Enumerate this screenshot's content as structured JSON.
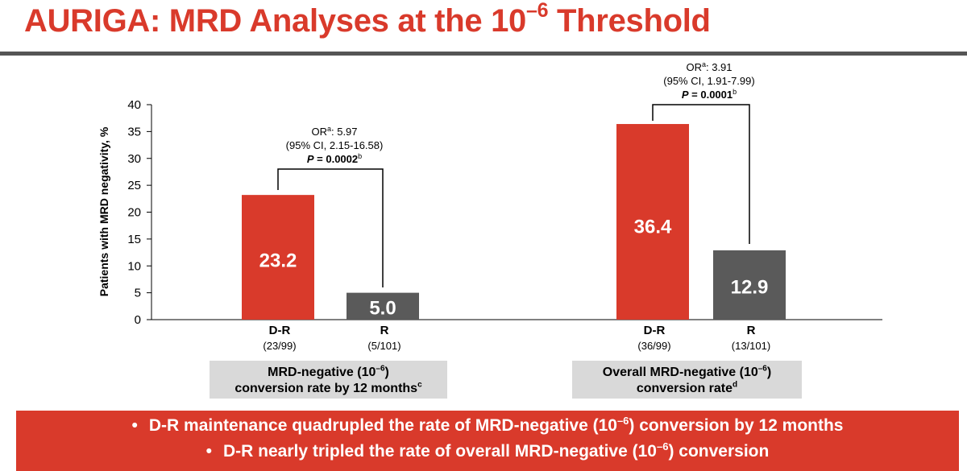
{
  "slide": {
    "title_main": "AURIGA: MRD Analyses at the 10",
    "title_sup": "–6",
    "title_end": " Threshold"
  },
  "chart_data": {
    "type": "bar",
    "ylabel": "Patients with MRD negativity, %",
    "ylim": [
      0,
      40
    ],
    "yticks": [
      0,
      5,
      10,
      15,
      20,
      25,
      30,
      35,
      40
    ],
    "colors": {
      "D-R": "#d93a2b",
      "R": "#5a5a5a"
    },
    "groups": [
      {
        "bars": [
          {
            "category": "D-R",
            "sublabel": "(23/99)",
            "value": 23.2,
            "label": "23.2"
          },
          {
            "category": "R",
            "sublabel": "(5/101)",
            "value": 5.0,
            "label": "5.0"
          }
        ],
        "annotation": {
          "or_prefix": "OR",
          "or_sup": "a",
          "or_value": ": 5.97",
          "ci": "(95% CI, 2.15-16.58)",
          "p_text": "P = 0.0002",
          "p_sup": "b"
        },
        "box": {
          "line1": "MRD-negative (10",
          "sup1": "–6",
          "line1_end": ")",
          "line2": "conversion rate by 12 months",
          "sup2": "c"
        }
      },
      {
        "bars": [
          {
            "category": "D-R",
            "sublabel": "(36/99)",
            "value": 36.4,
            "label": "36.4"
          },
          {
            "category": "R",
            "sublabel": "(13/101)",
            "value": 12.9,
            "label": "12.9"
          }
        ],
        "annotation": {
          "or_prefix": "OR",
          "or_sup": "a",
          "or_value": ": 3.91",
          "ci": "(95% CI, 1.91-7.99)",
          "p_text": "P = 0.0001",
          "p_sup": "b"
        },
        "box": {
          "line1": "Overall MRD-negative (10",
          "sup1": "–6",
          "line1_end": ")",
          "line2": "conversion rate",
          "sup2": "d"
        }
      }
    ]
  },
  "banner": {
    "bullet": "•",
    "line1_a": "D-R maintenance quadrupled the rate of MRD-negative (10",
    "line1_sup": "–6",
    "line1_b": ") conversion by 12 months",
    "line2_a": "D-R nearly tripled the rate of overall MRD-negative (10",
    "line2_sup": "–6",
    "line2_b": ") conversion"
  }
}
